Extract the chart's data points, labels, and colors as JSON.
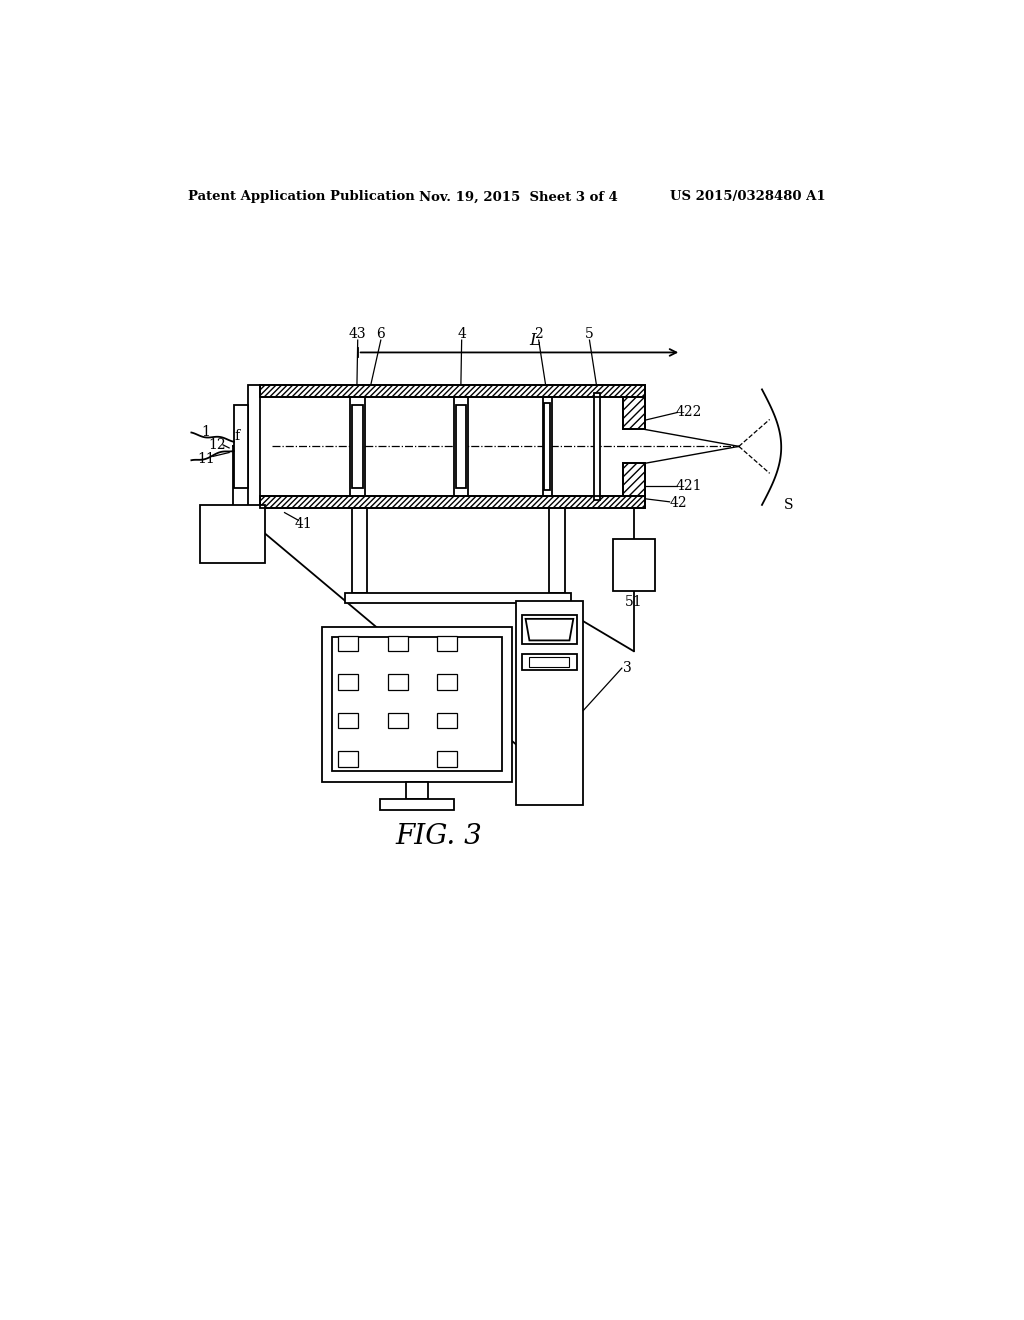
{
  "background_color": "#ffffff",
  "header_left": "Patent Application Publication",
  "header_mid": "Nov. 19, 2015  Sheet 3 of 4",
  "header_right": "US 2015/0328480 A1",
  "figure_label": "FIG. 3",
  "line_color": "#000000"
}
